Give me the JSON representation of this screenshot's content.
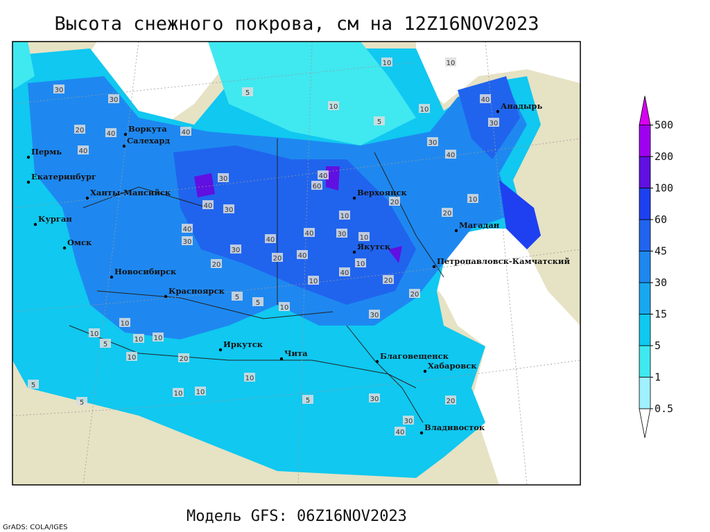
{
  "title": "Высота снежного покрова, см на 12Z16NOV2023",
  "model_run": "Модель GFS: 06Z16NOV2023",
  "credit": "GrADS: COLA/IGES",
  "legend": {
    "levels": [
      0.5,
      1,
      5,
      15,
      30,
      45,
      60,
      100,
      200,
      500
    ],
    "colors": [
      "#ffffff",
      "#a0f0ff",
      "#40e8f0",
      "#10c8f0",
      "#18a8f0",
      "#1e88f0",
      "#2064ee",
      "#1e40f0",
      "#6010e0",
      "#a000f0",
      "#d800f0"
    ]
  },
  "cities": [
    "Воркута",
    "Салехард",
    "Пермь",
    "Екатеринбург",
    "Ханты-Мансийск",
    "Курган",
    "Омск",
    "Новосибирск",
    "Красноярск",
    "Иркутск",
    "Чита",
    "Верхоянск",
    "Якутск",
    "Магадан",
    "Петропавловск-Камчатский",
    "Анадырь",
    "Благовещенск",
    "Хабаровск",
    "Владивосток"
  ],
  "contour_labels": [
    "10",
    "10",
    "5",
    "10",
    "5",
    "10",
    "30",
    "20",
    "40",
    "30",
    "40",
    "40",
    "40",
    "30",
    "30",
    "40",
    "40",
    "60",
    "30",
    "40",
    "30",
    "40",
    "40",
    "30",
    "40",
    "30",
    "20",
    "20",
    "30",
    "40",
    "40",
    "20",
    "10",
    "10",
    "20",
    "10",
    "10",
    "20",
    "20",
    "10",
    "10",
    "5",
    "5",
    "10",
    "10",
    "5",
    "10",
    "10",
    "20",
    "10",
    "5",
    "5",
    "10",
    "10",
    "10",
    "5",
    "30",
    "40",
    "30",
    "20",
    "30"
  ]
}
